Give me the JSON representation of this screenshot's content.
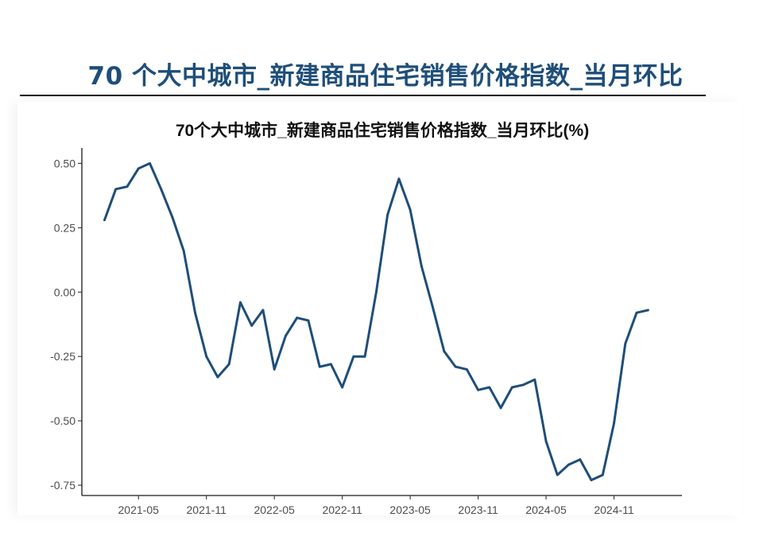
{
  "header": {
    "title": "70 个大中城市_新建商品住宅销售价格指数_当月环比"
  },
  "chart_data": {
    "type": "line",
    "title": "70个大中城市_新建商品住宅销售价格指数_当月环比(%)",
    "xlabel": "",
    "ylabel": "",
    "x": [
      "2021-02",
      "2021-03",
      "2021-04",
      "2021-05",
      "2021-06",
      "2021-07",
      "2021-08",
      "2021-09",
      "2021-10",
      "2021-11",
      "2021-12",
      "2022-01",
      "2022-02",
      "2022-03",
      "2022-04",
      "2022-05",
      "2022-06",
      "2022-07",
      "2022-08",
      "2022-09",
      "2022-10",
      "2022-11",
      "2022-12",
      "2023-01",
      "2023-02",
      "2023-03",
      "2023-04",
      "2023-05",
      "2023-06",
      "2023-07",
      "2023-08",
      "2023-09",
      "2023-10",
      "2023-11",
      "2023-12",
      "2024-01",
      "2024-02",
      "2024-03",
      "2024-04",
      "2024-05",
      "2024-06",
      "2024-07",
      "2024-08",
      "2024-09",
      "2024-10",
      "2024-11",
      "2024-12",
      "2025-01",
      "2025-02"
    ],
    "series": [
      {
        "values": [
          0.28,
          0.4,
          0.41,
          0.48,
          0.5,
          0.4,
          0.29,
          0.16,
          -0.08,
          -0.25,
          -0.33,
          -0.28,
          -0.04,
          -0.13,
          -0.07,
          -0.3,
          -0.17,
          -0.1,
          -0.11,
          -0.29,
          -0.28,
          -0.37,
          -0.25,
          -0.25,
          0.0,
          0.3,
          0.44,
          0.32,
          0.1,
          -0.06,
          -0.23,
          -0.29,
          -0.3,
          -0.38,
          -0.37,
          -0.45,
          -0.37,
          -0.36,
          -0.34,
          -0.58,
          -0.71,
          -0.67,
          -0.65,
          -0.73,
          -0.71,
          -0.51,
          -0.2,
          -0.08,
          -0.07
        ]
      }
    ],
    "x_ticks": [
      "2021-05",
      "2021-11",
      "2022-05",
      "2022-11",
      "2023-05",
      "2023-11",
      "2024-05",
      "2024-11"
    ],
    "y_ticks": [
      0.5,
      0.25,
      0.0,
      -0.25,
      -0.5,
      -0.75
    ],
    "y_tick_labels": [
      "0.50",
      "0.25",
      "0.00",
      "-0.25",
      "-0.50",
      "-0.75"
    ],
    "ylim": [
      -0.79,
      0.56
    ],
    "xlim": [
      "2020-12",
      "2025-05"
    ],
    "grid": false,
    "legend": "none",
    "line_color": "#1f4e79"
  }
}
